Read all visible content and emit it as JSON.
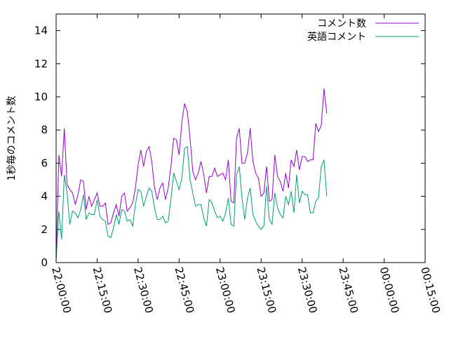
{
  "chart_data": {
    "type": "line",
    "ylabel": "1秒毎のコメント数",
    "xlabel": "",
    "title": "",
    "ylim": [
      0,
      15
    ],
    "y_ticks": [
      0,
      2,
      4,
      6,
      8,
      10,
      12,
      14
    ],
    "y_tick_labels": [
      "0",
      "2",
      "4",
      "6",
      "8",
      "10",
      "12",
      "14"
    ],
    "x_range": [
      "22:00:00",
      "00:15:00"
    ],
    "x_tick_labels": [
      "22:00:00",
      "22:15:00",
      "22:30:00",
      "22:45:00",
      "23:00:00",
      "23:15:00",
      "23:30:00",
      "23:45:00",
      "00:00:00",
      "00:15:00"
    ],
    "grid": false,
    "legend_position": "top-right",
    "x_interval_minutes": 1,
    "series": [
      {
        "name": "コメント数",
        "color": "#9400d3",
        "values": [
          0.2,
          6.5,
          5.2,
          8.1,
          4.7,
          4.4,
          4.2,
          3.5,
          4.1,
          5.0,
          4.9,
          3.2,
          4.0,
          3.4,
          3.8,
          4.2,
          3.4,
          3.4,
          3.6,
          2.3,
          2.4,
          3.0,
          3.5,
          2.8,
          4.0,
          4.2,
          3.1,
          3.3,
          3.6,
          4.5,
          5.9,
          6.8,
          5.8,
          6.7,
          7.0,
          6.1,
          4.5,
          3.8,
          4.5,
          4.8,
          3.8,
          4.5,
          5.8,
          7.5,
          7.4,
          6.5,
          8.5,
          9.6,
          9.1,
          7.5,
          5.5,
          5.0,
          5.4,
          6.1,
          5.3,
          4.2,
          5.2,
          5.2,
          5.7,
          5.2,
          5.3,
          5.4,
          5.0,
          6.2,
          3.7,
          3.6,
          7.5,
          8.1,
          6.0,
          6.0,
          6.6,
          8.1,
          6.1,
          5.4,
          5.1,
          4.0,
          4.2,
          5.8,
          3.7,
          3.8,
          6.5,
          5.2,
          4.9,
          4.3,
          5.4,
          4.5,
          6.2,
          5.8,
          6.8,
          5.6,
          6.4,
          6.4,
          6.1,
          6.2,
          6.2,
          8.4,
          7.9,
          8.3,
          10.5,
          9.0
        ]
      },
      {
        "name": "英語コメント",
        "color": "#009e73",
        "values": [
          0.1,
          3.1,
          1.4,
          5.3,
          4.2,
          2.3,
          3.1,
          3.0,
          2.7,
          3.2,
          4.1,
          2.6,
          3.0,
          2.9,
          2.9,
          3.8,
          2.8,
          2.6,
          2.5,
          1.6,
          1.5,
          2.1,
          2.9,
          2.3,
          3.2,
          3.1,
          2.5,
          2.6,
          2.2,
          3.5,
          4.4,
          4.3,
          3.4,
          4.0,
          4.5,
          4.3,
          3.3,
          2.6,
          2.6,
          2.8,
          2.4,
          2.5,
          3.8,
          5.4,
          4.9,
          4.4,
          5.1,
          6.9,
          7.0,
          5.0,
          4.2,
          3.4,
          3.5,
          3.5,
          2.7,
          2.2,
          3.8,
          3.6,
          3.1,
          2.7,
          2.8,
          2.5,
          3.0,
          3.9,
          2.3,
          2.2,
          5.3,
          5.8,
          3.9,
          2.6,
          3.9,
          4.5,
          2.9,
          2.5,
          2.2,
          2.0,
          2.2,
          4.6,
          2.6,
          2.3,
          4.2,
          3.3,
          2.9,
          2.7,
          4.0,
          3.5,
          4.3,
          3.0,
          5.3,
          3.6,
          4.3,
          4.1,
          4.1,
          3.0,
          3.0,
          3.7,
          3.9,
          5.8,
          6.2,
          4.0
        ]
      }
    ]
  }
}
